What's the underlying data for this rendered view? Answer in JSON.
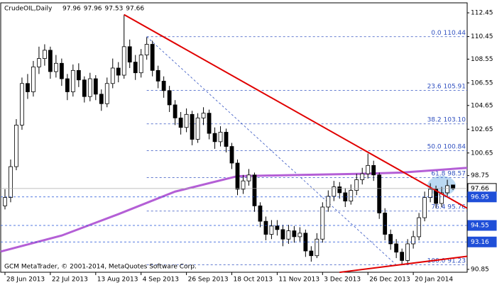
{
  "chart_data": {
    "type": "candlestick",
    "title": "CrudeOIL,Daily",
    "footer": "GCM MetaTrader, © 2001-2014, MetaQuotes Software Corp.",
    "candle_fields": [
      "open",
      "high",
      "low",
      "close"
    ],
    "candles": [
      [
        96.2,
        97.6,
        95.9,
        96.9
      ],
      [
        96.9,
        100.1,
        96.5,
        99.5
      ],
      [
        99.5,
        103.5,
        99.2,
        103.0
      ],
      [
        103.0,
        107.0,
        102.6,
        106.5
      ],
      [
        106.5,
        107.3,
        105.2,
        105.8
      ],
      [
        105.8,
        108.4,
        105.4,
        107.9
      ],
      [
        107.9,
        109.6,
        107.3,
        108.6
      ],
      [
        108.6,
        109.8,
        108.0,
        109.3
      ],
      [
        109.3,
        109.6,
        106.9,
        107.5
      ],
      [
        107.5,
        108.9,
        107.0,
        108.2
      ],
      [
        108.2,
        108.6,
        106.3,
        106.9
      ],
      [
        106.9,
        107.3,
        105.1,
        105.8
      ],
      [
        105.8,
        108.1,
        105.4,
        107.6
      ],
      [
        107.6,
        108.2,
        106.2,
        106.8
      ],
      [
        106.8,
        107.1,
        104.9,
        105.4
      ],
      [
        105.4,
        107.4,
        105.0,
        106.9
      ],
      [
        106.9,
        107.2,
        105.1,
        105.6
      ],
      [
        105.6,
        106.0,
        104.2,
        104.8
      ],
      [
        104.8,
        107.0,
        104.5,
        106.5
      ],
      [
        106.5,
        108.6,
        106.1,
        107.8
      ],
      [
        107.8,
        108.3,
        106.6,
        107.2
      ],
      [
        107.2,
        112.3,
        106.9,
        109.6
      ],
      [
        109.6,
        110.2,
        107.8,
        108.3
      ],
      [
        108.3,
        108.9,
        106.8,
        107.4
      ],
      [
        107.4,
        109.4,
        107.0,
        108.9
      ],
      [
        108.9,
        110.4,
        108.5,
        109.8
      ],
      [
        109.8,
        110.1,
        107.1,
        107.6
      ],
      [
        107.6,
        108.0,
        106.1,
        106.7
      ],
      [
        106.7,
        107.1,
        105.3,
        105.9
      ],
      [
        105.9,
        106.3,
        104.1,
        104.7
      ],
      [
        104.7,
        105.1,
        103.0,
        103.6
      ],
      [
        103.6,
        104.1,
        102.2,
        102.8
      ],
      [
        102.8,
        104.4,
        102.4,
        103.9
      ],
      [
        103.9,
        104.2,
        101.3,
        101.8
      ],
      [
        101.8,
        104.0,
        101.5,
        103.6
      ],
      [
        103.6,
        104.5,
        103.0,
        104.0
      ],
      [
        104.0,
        104.3,
        101.8,
        102.3
      ],
      [
        102.3,
        102.8,
        101.0,
        101.6
      ],
      [
        101.6,
        102.9,
        101.2,
        102.4
      ],
      [
        102.4,
        102.7,
        100.7,
        101.2
      ],
      [
        101.2,
        101.5,
        99.3,
        99.8
      ],
      [
        99.8,
        100.1,
        97.1,
        97.6
      ],
      [
        97.6,
        98.8,
        97.2,
        98.3
      ],
      [
        98.3,
        99.3,
        97.9,
        98.8
      ],
      [
        98.8,
        99.0,
        95.7,
        96.2
      ],
      [
        96.2,
        96.5,
        94.4,
        94.9
      ],
      [
        94.9,
        95.3,
        93.3,
        93.8
      ],
      [
        93.8,
        95.0,
        93.4,
        94.5
      ],
      [
        94.5,
        95.0,
        93.7,
        94.2
      ],
      [
        94.2,
        94.6,
        92.8,
        93.4
      ],
      [
        93.4,
        94.6,
        93.0,
        94.1
      ],
      [
        94.1,
        94.5,
        93.1,
        93.6
      ],
      [
        93.6,
        94.4,
        93.2,
        93.9
      ],
      [
        93.9,
        94.2,
        91.9,
        92.4
      ],
      [
        92.4,
        92.8,
        91.5,
        92.0
      ],
      [
        92.0,
        93.9,
        91.8,
        93.4
      ],
      [
        93.4,
        96.5,
        93.1,
        96.1
      ],
      [
        96.1,
        97.5,
        95.7,
        97.0
      ],
      [
        97.0,
        98.3,
        96.6,
        97.8
      ],
      [
        97.8,
        98.2,
        96.8,
        97.3
      ],
      [
        97.3,
        97.7,
        96.1,
        96.6
      ],
      [
        96.6,
        98.0,
        96.3,
        97.5
      ],
      [
        97.5,
        98.9,
        97.1,
        98.4
      ],
      [
        98.4,
        99.4,
        98.0,
        98.9
      ],
      [
        98.9,
        100.6,
        98.5,
        99.6
      ],
      [
        99.6,
        100.0,
        98.3,
        98.8
      ],
      [
        98.8,
        99.0,
        95.1,
        95.6
      ],
      [
        95.6,
        96.0,
        93.3,
        93.8
      ],
      [
        93.8,
        94.2,
        92.5,
        93.0
      ],
      [
        93.0,
        93.4,
        91.8,
        92.3
      ],
      [
        92.3,
        92.6,
        91.2,
        91.6
      ],
      [
        91.6,
        93.4,
        91.3,
        93.0
      ],
      [
        93.0,
        94.1,
        92.6,
        93.6
      ],
      [
        93.6,
        95.6,
        93.3,
        95.2
      ],
      [
        95.2,
        97.4,
        94.9,
        96.9
      ],
      [
        96.9,
        98.1,
        96.5,
        97.6
      ],
      [
        97.6,
        97.9,
        96.0,
        96.4
      ],
      [
        96.4,
        97.8,
        96.1,
        97.3
      ],
      [
        97.3,
        98.4,
        97.0,
        97.9
      ],
      [
        97.96,
        97.96,
        97.53,
        97.66
      ]
    ],
    "xlim": [
      -0.75,
      81.5
    ],
    "ylim": [
      90.61,
      113.29
    ],
    "xticks": [
      {
        "value": 0,
        "label": "28 Jun 2013"
      },
      {
        "value": 8,
        "label": "22 Jul 2013"
      },
      {
        "value": 16,
        "label": "13 Aug 2013"
      },
      {
        "value": 24,
        "label": "4 Sep 2013"
      },
      {
        "value": 32,
        "label": "26 Sep 2013"
      },
      {
        "value": 40,
        "label": "18 Oct 2013"
      },
      {
        "value": 48,
        "label": "11 Nov 2013"
      },
      {
        "value": 56,
        "label": "3 Dec 2013"
      },
      {
        "value": 64,
        "label": "26 Dec 2013"
      },
      {
        "value": 72,
        "label": "20 Jan 2014"
      }
    ],
    "yticks": [
      112.45,
      110.45,
      108.55,
      106.55,
      104.65,
      102.65,
      100.65,
      98.75,
      90.85
    ],
    "up_color": "#ffffff",
    "down_color": "#000000",
    "candle_outline": "#000000",
    "moving_average": {
      "color": "#b45fd6",
      "x": [
        -0.75,
        10,
        20,
        30,
        41,
        52,
        63,
        70,
        81.5
      ],
      "values": [
        92.35,
        93.7,
        95.5,
        97.4,
        98.7,
        98.8,
        98.9,
        99.0,
        99.4
      ]
    },
    "trendlines": [
      {
        "color": "#e00000",
        "x": [
          21,
          81.5
        ],
        "values": [
          112.3,
          96.0
        ]
      },
      {
        "color": "#e00000",
        "x": [
          59,
          81.5
        ],
        "values": [
          90.6,
          91.95
        ]
      }
    ],
    "fibonacci": {
      "color": "#3050c0",
      "x": [
        25,
        69
      ],
      "values": [
        110.44,
        91.23
      ],
      "levels": [
        {
          "level": "0.0",
          "value": 110.44
        },
        {
          "level": "23.6",
          "value": 105.91
        },
        {
          "level": "38.2",
          "value": {
            "value": 103.1,
            "label": "103.10"
          }
        },
        {
          "level": "50.0",
          "value": 100.84
        },
        {
          "level": "61.8",
          "value": 98.57
        },
        {
          "level": "76.4",
          "value": 95.76
        },
        {
          "level": "100.0",
          "value": 91.23
        }
      ]
    },
    "price_labels": [
      {
        "value": 97.66,
        "color": "#ffffff"
      },
      {
        "value": 96.95,
        "color": "#1f4fd8"
      },
      {
        "value": 94.55,
        "color": "#1f4fd8"
      },
      {
        "value": 93.16,
        "color": "#1f4fd8"
      }
    ]
  }
}
